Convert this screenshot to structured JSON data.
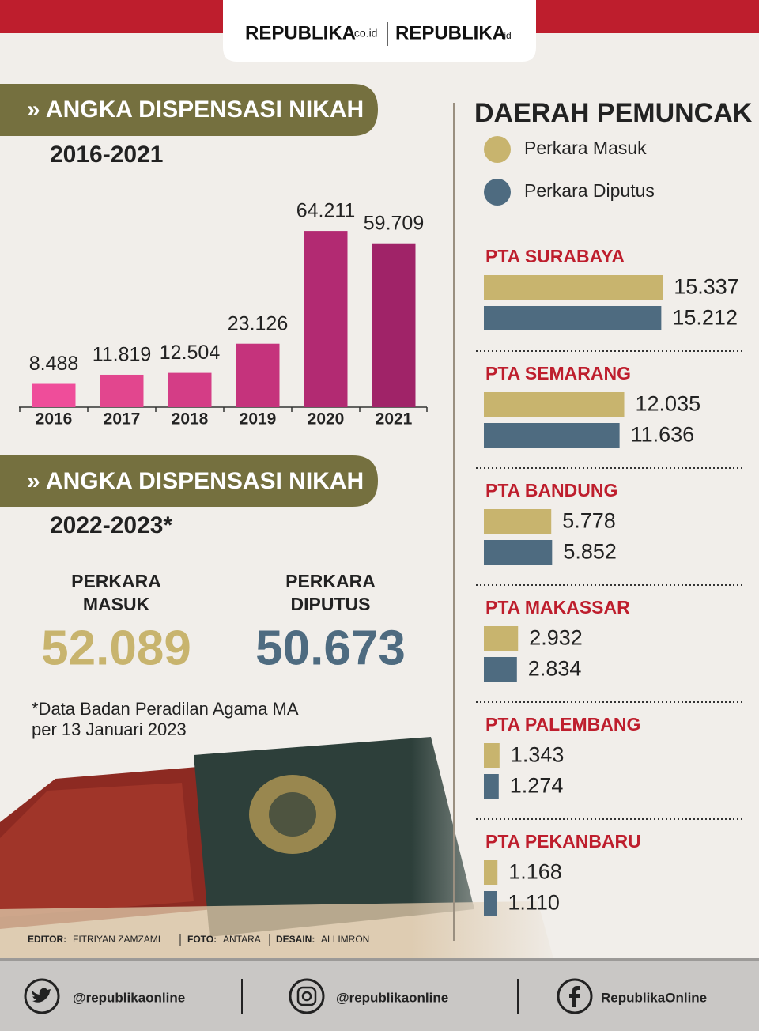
{
  "header": {
    "logo_1": "REPUBLIKA",
    "logo_1_suffix": ".co.id",
    "logo_2": "REPUBLIKA",
    "logo_2_suffix": ".id"
  },
  "chart_data": [
    {
      "type": "bar",
      "title": "» ANGKA DISPENSASI NIKAH",
      "subtitle": "2016-2021",
      "categories": [
        "2016",
        "2017",
        "2018",
        "2019",
        "2020",
        "2021"
      ],
      "values": [
        8488,
        11819,
        12504,
        23126,
        64211,
        59709
      ],
      "value_labels": [
        "8.488",
        "11.819",
        "12.504",
        "23.126",
        "64.211",
        "59.709"
      ],
      "colors": [
        "#ef4d9a",
        "#e2468e",
        "#d43d86",
        "#c5337c",
        "#b22a72",
        "#a02368"
      ],
      "ylim": [
        0,
        70000
      ]
    },
    {
      "type": "hbar",
      "title": "DAERAH PEMUNCAK",
      "categories": [
        "PTA SURABAYA",
        "PTA SEMARANG",
        "PTA BANDUNG",
        "PTA MAKASSAR",
        "PTA PALEMBANG",
        "PTA PEKANBARU"
      ],
      "series": [
        {
          "name": "Perkara Masuk",
          "color": "#c8b46e",
          "values": [
            15337,
            12035,
            5778,
            2932,
            1343,
            1168
          ],
          "value_labels": [
            "15.337",
            "12.035",
            "5.778",
            "2.932",
            "1.343",
            "1.168"
          ]
        },
        {
          "name": "Perkara Diputus",
          "color": "#4e6b80",
          "values": [
            15212,
            11636,
            5852,
            2834,
            1274,
            1110
          ],
          "value_labels": [
            "15.212",
            "11.636",
            "5.852",
            "2.834",
            "1.274",
            "1.110"
          ]
        }
      ],
      "xlim": [
        0,
        16000
      ]
    }
  ],
  "summary": {
    "title": "» ANGKA DISPENSASI NIKAH",
    "subtitle": "2022-2023*",
    "items": [
      {
        "label_lines": [
          "PERKARA",
          "MASUK"
        ],
        "value": "52.089"
      },
      {
        "label_lines": [
          "PERKARA",
          "DIPUTUS"
        ],
        "value": "50.673"
      }
    ],
    "note_lines": [
      "*Data Badan Peradilan Agama MA",
      "per 13 Januari 2023"
    ]
  },
  "credits": [
    {
      "label": "EDITOR:",
      "value": "FITRIYAN ZAMZAMI"
    },
    {
      "label": "FOTO:",
      "value": "ANTARA"
    },
    {
      "label": "DESAIN:",
      "value": "ALI IMRON"
    }
  ],
  "footer": {
    "twitter": "@republikaonline",
    "instagram": "@republikaonline",
    "facebook": "RepublikaOnline"
  }
}
